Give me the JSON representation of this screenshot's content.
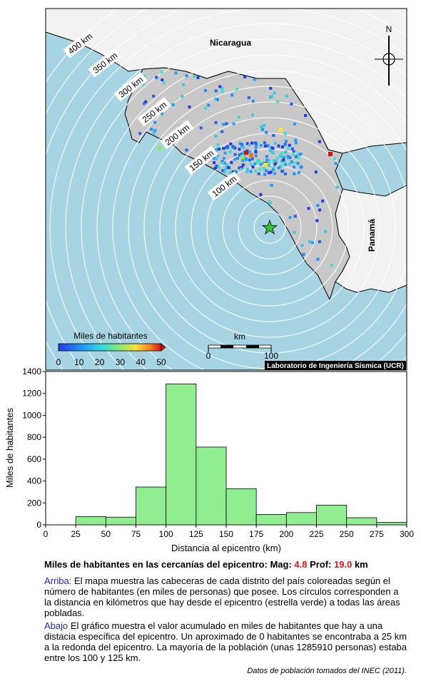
{
  "map": {
    "country_labels": [
      "Nicaragua",
      "Panamá"
    ],
    "north_label": "N",
    "ring_labels": [
      "100 km",
      "150 km",
      "200 km",
      "250 km",
      "300 km",
      "350 km",
      "400 km"
    ],
    "legend_title": "Miles de habitantes",
    "legend_ticks": [
      "0",
      "10",
      "20",
      "30",
      "40",
      "50"
    ],
    "scale_title": "km",
    "scale_ticks": [
      "0",
      "100"
    ],
    "credit": "Laboratorio de Ingeniería Sísmica (UCR)",
    "colors": {
      "sea": "#a6d4e3",
      "land": "#c8c8c8",
      "outside_land": "#f2f2f2",
      "epicenter": "#35c435"
    }
  },
  "chart_data": {
    "type": "bar",
    "xlabel": "Distancia al epicentro (km)",
    "ylabel": "Miles de habitantes",
    "bins": [
      {
        "from": 0,
        "to": 25,
        "value": 0
      },
      {
        "from": 25,
        "to": 50,
        "value": 75
      },
      {
        "from": 50,
        "to": 75,
        "value": 70
      },
      {
        "from": 75,
        "to": 100,
        "value": 345
      },
      {
        "from": 100,
        "to": 125,
        "value": 1286
      },
      {
        "from": 125,
        "to": 150,
        "value": 710
      },
      {
        "from": 150,
        "to": 175,
        "value": 330
      },
      {
        "from": 175,
        "to": 200,
        "value": 95
      },
      {
        "from": 200,
        "to": 225,
        "value": 112
      },
      {
        "from": 225,
        "to": 250,
        "value": 180
      },
      {
        "from": 250,
        "to": 275,
        "value": 65
      },
      {
        "from": 275,
        "to": 300,
        "value": 22
      }
    ],
    "x_ticks": [
      0,
      25,
      50,
      75,
      100,
      125,
      150,
      175,
      200,
      225,
      250,
      275,
      300
    ],
    "y_ticks": [
      0,
      200,
      400,
      600,
      800,
      1000,
      1200,
      1400
    ],
    "xlim": [
      0,
      300
    ],
    "ylim": [
      0,
      1400
    ],
    "bar_color": "#90ee90"
  },
  "caption": {
    "title_prefix": "Miles de habitantes en las cercanías del epicentro: Mag: ",
    "mag": "4.8",
    "prof_label": " Prof: ",
    "prof": "19.0",
    "prof_unit": " km",
    "arriba_lead": "Arriba:",
    "arriba_text": " El mapa muestra las cabeceras de cada distrito del país coloreadas según el número de habitantes (en miles de personas) que posee. Los círculos corresponden a la distancia en kilómetros que hay desde el epicentro (estrella verde) a todas las áreas pobladas.",
    "abajo_lead": "Abajo",
    "abajo_text": " El gráfico muestra el valor acumulado en miles de habitantes que hay a una distacia específica del epicentro. Un aproximado de 0 habitantes se encontraba a 25 km a la redonda del epicentro. La mayoría de la población (unas 1285910 personas) estaba entre los 100 y 125 km.",
    "source": "Datos de población tomados del INEC (2011)."
  }
}
